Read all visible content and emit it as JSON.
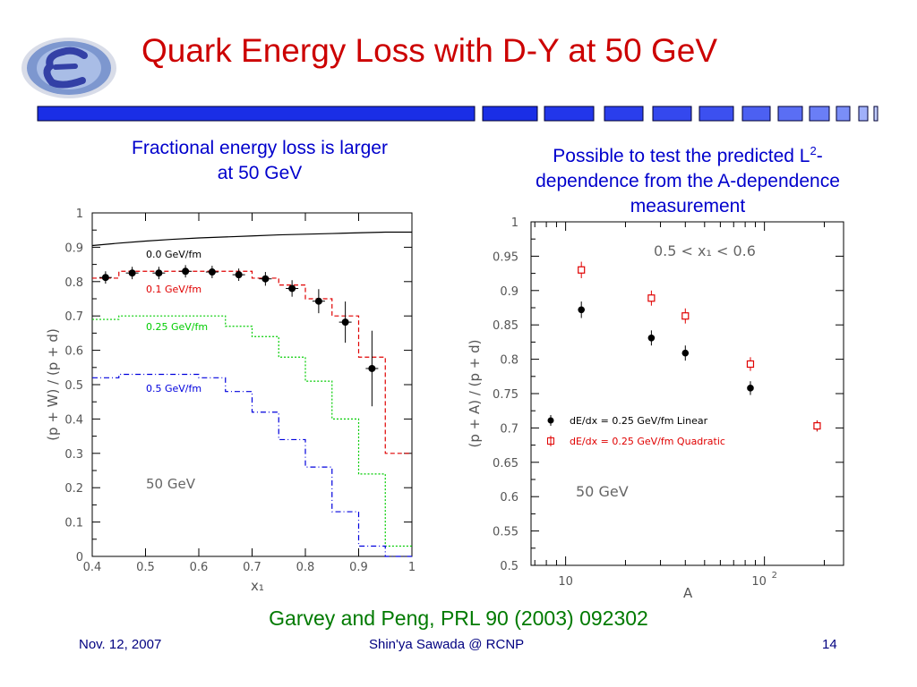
{
  "slide": {
    "title": "Quark Energy Loss with D-Y at 50 GeV",
    "left_caption_line1": "Fractional energy loss is larger",
    "left_caption_line2": "at 50 GeV",
    "right_caption_line1a": "Possible to test the predicted L",
    "right_caption_sup": "2",
    "right_caption_line1b": "-",
    "right_caption_line2": "dependence from the A-dependence",
    "right_caption_line3": "measurement",
    "citation": "Garvey and Peng, PRL 90 (2003) 092302",
    "footer_date": "Nov. 12, 2007",
    "footer_author": "Shin'ya Sawada @ RCNP",
    "footer_page": "14",
    "colors": {
      "title": "#cc0000",
      "caption": "#0000cc",
      "citation": "#007a00",
      "footer": "#000080",
      "bar": "#1a2ee6"
    }
  },
  "chart_data": [
    {
      "type": "line",
      "xlabel": "x₁",
      "ylabel": "(p + W) / (p + d)",
      "xlim": [
        0.4,
        1.0
      ],
      "ylim": [
        0,
        1
      ],
      "xticks": [
        "0.4",
        "0.5",
        "0.6",
        "0.7",
        "0.8",
        "0.9",
        "1"
      ],
      "yticks": [
        "0",
        "0.1",
        "0.2",
        "0.3",
        "0.4",
        "0.5",
        "0.6",
        "0.7",
        "0.8",
        "0.9",
        "1"
      ],
      "annotation": "50 GeV",
      "grid": false,
      "series": [
        {
          "name": "0.0 GeV/fm",
          "color": "#000000",
          "style": "solid",
          "x": [
            0.4,
            0.45,
            0.5,
            0.55,
            0.6,
            0.65,
            0.7,
            0.75,
            0.8,
            0.85,
            0.9,
            0.95,
            1.0
          ],
          "y": [
            0.905,
            0.912,
            0.918,
            0.923,
            0.927,
            0.93,
            0.933,
            0.936,
            0.938,
            0.94,
            0.942,
            0.944,
            0.944
          ]
        },
        {
          "name": "0.1 GeV/fm",
          "color": "#e00000",
          "style": "dashed",
          "step": true,
          "edges": [
            0.4,
            0.45,
            0.5,
            0.55,
            0.6,
            0.65,
            0.7,
            0.75,
            0.8,
            0.85,
            0.9,
            0.95,
            1.0
          ],
          "y": [
            0.81,
            0.83,
            0.83,
            0.83,
            0.83,
            0.83,
            0.81,
            0.79,
            0.75,
            0.7,
            0.58,
            0.3
          ]
        },
        {
          "name": "0.25 GeV/fm",
          "color": "#00cc00",
          "style": "dotted",
          "step": true,
          "edges": [
            0.4,
            0.45,
            0.5,
            0.55,
            0.6,
            0.65,
            0.7,
            0.75,
            0.8,
            0.85,
            0.9,
            0.95,
            1.0
          ],
          "y": [
            0.69,
            0.7,
            0.7,
            0.7,
            0.7,
            0.67,
            0.64,
            0.58,
            0.51,
            0.4,
            0.24,
            0.03
          ]
        },
        {
          "name": "0.5 GeV/fm",
          "color": "#0000dd",
          "style": "dashdot",
          "step": true,
          "edges": [
            0.4,
            0.45,
            0.5,
            0.55,
            0.6,
            0.65,
            0.7,
            0.75,
            0.8,
            0.85,
            0.9,
            0.95,
            1.0
          ],
          "y": [
            0.52,
            0.53,
            0.53,
            0.53,
            0.52,
            0.48,
            0.42,
            0.34,
            0.26,
            0.13,
            0.03,
            0.0
          ]
        },
        {
          "name": "data",
          "color": "#000000",
          "style": "points",
          "x": [
            0.425,
            0.475,
            0.525,
            0.575,
            0.625,
            0.675,
            0.725,
            0.775,
            0.825,
            0.875,
            0.925
          ],
          "y": [
            0.812,
            0.825,
            0.825,
            0.83,
            0.828,
            0.82,
            0.808,
            0.78,
            0.743,
            0.682,
            0.547
          ],
          "err": [
            0.018,
            0.018,
            0.018,
            0.018,
            0.018,
            0.018,
            0.02,
            0.024,
            0.035,
            0.06,
            0.11
          ]
        }
      ]
    },
    {
      "type": "scatter",
      "xlabel": "A",
      "ylabel": "(p + A) / (p + d)",
      "xscale": "log",
      "xlim": [
        6.7,
        250
      ],
      "ylim": [
        0.5,
        1.0
      ],
      "xticks_label_main": "10",
      "xticks_label_sup": "2",
      "yticks": [
        "0.5",
        "0.55",
        "0.6",
        "0.65",
        "0.7",
        "0.75",
        "0.8",
        "0.85",
        "0.9",
        "0.95",
        "1"
      ],
      "annotation": "50 GeV",
      "range_label": "0.5 < x₁ < 0.6",
      "grid": false,
      "series": [
        {
          "name": "dE/dx = 0.25 GeV/fm  Linear",
          "color": "#000000",
          "marker": "filled-circle",
          "x": [
            12,
            27,
            40,
            85,
            184
          ],
          "y": [
            0.872,
            0.831,
            0.809,
            0.758,
            0.703
          ],
          "err": [
            0.012,
            0.011,
            0.011,
            0.01,
            0.008
          ]
        },
        {
          "name": "dE/dx = 0.25 GeV/fm  Quadratic",
          "color": "#e00000",
          "marker": "open-square",
          "x": [
            12,
            27,
            40,
            85,
            184
          ],
          "y": [
            0.93,
            0.889,
            0.863,
            0.793,
            0.703
          ],
          "err": [
            0.012,
            0.011,
            0.011,
            0.01,
            0.008
          ]
        }
      ]
    }
  ]
}
